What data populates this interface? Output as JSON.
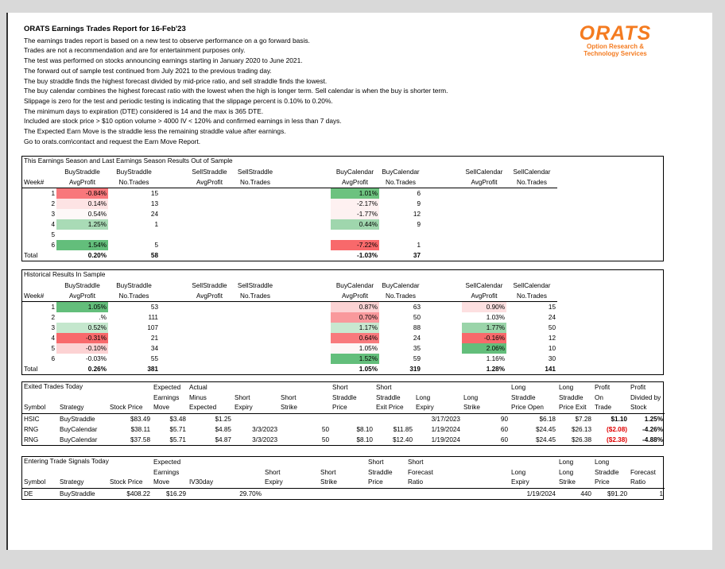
{
  "header": {
    "title": "ORATS Earnings Trades Report for 16-Feb'23",
    "lines": [
      "The earnings trades report is based on a new test to observe performance on a go forward basis.",
      "Trades are not a recommendation and are for entertainment purposes only.",
      "The test was performed on stocks announcing earnings starting in January 2020 to June 2021.",
      "The forward out of sample test continued from July 2021 to the previous trading day.",
      "The buy straddle finds the highest forecast divided by mid-price ratio, and sell straddle finds the lowest.",
      "The buy calendar combines the highest forecast ratio with the lowest when the high is longer term. Sell calendar is when the buy is shorter term.",
      "Slippage is zero for the test and periodic testing is indicating that the slippage percent is 0.10% to 0.20%.",
      "The minimum days to expiration (DTE) considered is 14 and the max is 365 DTE.",
      "Included are stock price > $10 option volume > 4000 IV < 120% and confirmed earnings in less than 7 days.",
      "The Expected Earn Move is the straddle less the remaining straddle value after earnings.",
      "Go to orats.com\\contact and request the Earn Move Report."
    ]
  },
  "logo": {
    "name": "ORATS",
    "tagline": [
      "Option Research &",
      "Technology Services"
    ],
    "color": "#f47b20"
  },
  "tables": [
    {
      "title": "This Earnings Season and Last Earnings Season Results Out of Sample",
      "header_top": [
        "BuyStraddle",
        "BuyStraddle",
        "SellStraddle",
        "SellStraddle",
        "BuyCalendar",
        "BuyCalendar",
        "SellCalendar",
        "SellCalendar"
      ],
      "header": [
        "Week#",
        "AvgProfit",
        "No.Trades",
        "AvgProfit",
        "No.Trades",
        "AvgProfit",
        "No.Trades",
        "AvgProfit",
        "No.Trades"
      ],
      "rows": [
        [
          "1",
          {
            "text": "-0.84%",
            "fill": "#f8777b"
          },
          "15",
          null,
          null,
          {
            "text": "1.01%",
            "fill": "#6cc27f"
          },
          "6",
          null,
          null
        ],
        [
          "2",
          {
            "text": "0.14%",
            "fill": "#fde3e4"
          },
          "13",
          null,
          null,
          {
            "text": "-2.17%",
            "fill": "#fef1f1"
          },
          "9",
          null,
          null
        ],
        [
          "3",
          {
            "text": "0.54%",
            "fill": "#fdf8f8"
          },
          "24",
          null,
          null,
          {
            "text": "-1.77%",
            "fill": "#fdf1f1"
          },
          "12",
          null,
          null
        ],
        [
          "4",
          {
            "text": "1.25%",
            "fill": "#a9dbb6"
          },
          "1",
          null,
          null,
          {
            "text": "0.44%",
            "fill": "#9fd6ad"
          },
          "9",
          null,
          null
        ],
        [
          "5",
          null,
          null,
          null,
          null,
          null,
          null,
          null,
          null
        ],
        [
          "6",
          {
            "text": "1.54%",
            "fill": "#63be7b"
          },
          "5",
          null,
          null,
          {
            "text": "-7.22%",
            "fill": "#f8696b"
          },
          "1",
          null,
          null
        ],
        [
          "Total",
          "0.20%",
          "58",
          null,
          null,
          "-1.03%",
          "37",
          null,
          null
        ]
      ]
    },
    {
      "title": "Historical Results In Sample",
      "header_top": [
        "BuyStraddle",
        "BuyStraddle",
        "SellStraddle",
        "SellStraddle",
        "BuyCalendar",
        "BuyCalendar",
        "SellCalendar",
        "SellCalendar"
      ],
      "header": [
        "Week#",
        "AvgProfit",
        "No.Trades",
        "AvgProfit",
        "No.Trades",
        "AvgProfit",
        "No.Trades",
        "AvgProfit",
        "No.Trades"
      ],
      "rows": [
        [
          "1",
          {
            "text": "1.05%",
            "fill": "#63be7b"
          },
          "53",
          null,
          null,
          {
            "text": "0.87%",
            "fill": "#fcd3d4"
          },
          "63",
          {
            "text": "0.90%",
            "fill": "#fde0e1"
          },
          "15"
        ],
        [
          "2",
          ".%",
          "111",
          null,
          null,
          {
            "text": "0.70%",
            "fill": "#f9999c"
          },
          "50",
          "1.03%",
          "24"
        ],
        [
          "3",
          {
            "text": "0.52%",
            "fill": "#c4e7cd"
          },
          "107",
          null,
          null,
          {
            "text": "1.17%",
            "fill": "#c8e8d0"
          },
          "88",
          {
            "text": "1.77%",
            "fill": "#9ad4a9"
          },
          "50"
        ],
        [
          "4",
          {
            "text": "-0.31%",
            "fill": "#f8696b"
          },
          "21",
          null,
          null,
          {
            "text": "0.64%",
            "fill": "#f8797c"
          },
          "24",
          {
            "text": "-0.16%",
            "fill": "#f8696b"
          },
          "12"
        ],
        [
          "5",
          {
            "text": "-0.10%",
            "fill": "#fcd2d3"
          },
          "34",
          null,
          null,
          {
            "text": "1.05%",
            "fill": "#fdf6f6"
          },
          "35",
          {
            "text": "2.06%",
            "fill": "#63be7b"
          },
          "10"
        ],
        [
          "6",
          "-0.03%",
          "55",
          null,
          null,
          {
            "text": "1.52%",
            "fill": "#63be7b"
          },
          "59",
          "1.16%",
          "30"
        ],
        [
          "Total",
          "0.26%",
          "381",
          null,
          null,
          "1.05%",
          "319",
          "1.28%",
          "141"
        ]
      ]
    },
    {
      "title": "Exited Trades Today",
      "columns": [
        [
          "Symbol"
        ],
        [
          "Strategy"
        ],
        [
          "Stock Price"
        ],
        [
          "Expected",
          "Earnings",
          "Move"
        ],
        [
          "Actual",
          "Minus",
          "Expected"
        ],
        [
          "Short",
          "Expiry"
        ],
        [
          "Short",
          "Strike"
        ],
        [
          "Short",
          "Straddle",
          "Price"
        ],
        [
          "Short",
          "Straddle",
          "Exit Price"
        ],
        [
          "Long",
          "Expiry"
        ],
        [
          "Long",
          "Strike"
        ],
        [
          "Long",
          "Straddle",
          "Price Open"
        ],
        [
          "Long",
          "Straddle",
          "Price Exit"
        ],
        [
          "Profit",
          "On",
          "Trade"
        ],
        [
          "Profit",
          "Divided by",
          "Stock"
        ]
      ],
      "rows": [
        [
          "HSIC",
          "BuyStraddle",
          "$83.49",
          "$3.48",
          "$1.25",
          null,
          null,
          null,
          null,
          "3/17/2023",
          "90",
          "$6.18",
          "$7.28",
          "$1.10",
          "1.25%"
        ],
        [
          "RNG",
          "BuyCalendar",
          "$38.11",
          "$5.71",
          "$4.85",
          "3/3/2023",
          "50",
          "$8.10",
          "$11.85",
          "1/19/2024",
          "60",
          "$24.45",
          "$26.13",
          {
            "text": "($2.08)",
            "color": "#e00000"
          },
          "-4.26%"
        ],
        [
          "RNG",
          "BuyCalendar",
          "$37.58",
          "$5.71",
          "$4.87",
          "3/3/2023",
          "50",
          "$8.10",
          "$12.40",
          "1/19/2024",
          "60",
          "$24.45",
          "$26.38",
          {
            "text": "($2.38)",
            "color": "#e00000"
          },
          "-4.88%"
        ]
      ]
    },
    {
      "title": "Entering Trade Signals Today",
      "columns": [
        [
          "Symbol"
        ],
        [
          "Strategy"
        ],
        [
          "Stock Price"
        ],
        [
          "Expected",
          "Earnings",
          "Move"
        ],
        [
          "IV30day"
        ],
        [
          "Short",
          "Expiry"
        ],
        [
          "Short",
          "Strike"
        ],
        [
          "Short",
          "Straddle",
          "Price"
        ],
        [
          "Short",
          "Forecast",
          "Ratio"
        ],
        [
          "Long",
          "Expiry"
        ],
        [
          "Long",
          "Long",
          "Strike"
        ],
        [
          "Long",
          "Straddle",
          "Price"
        ],
        [
          "Forecast",
          "Ratio"
        ]
      ],
      "rows": [
        [
          "DE",
          "BuyStraddle",
          "$408.22",
          "$16.29",
          "29.70%",
          null,
          null,
          null,
          null,
          "1/19/2024",
          "440",
          "$91.20",
          "1"
        ]
      ]
    }
  ]
}
